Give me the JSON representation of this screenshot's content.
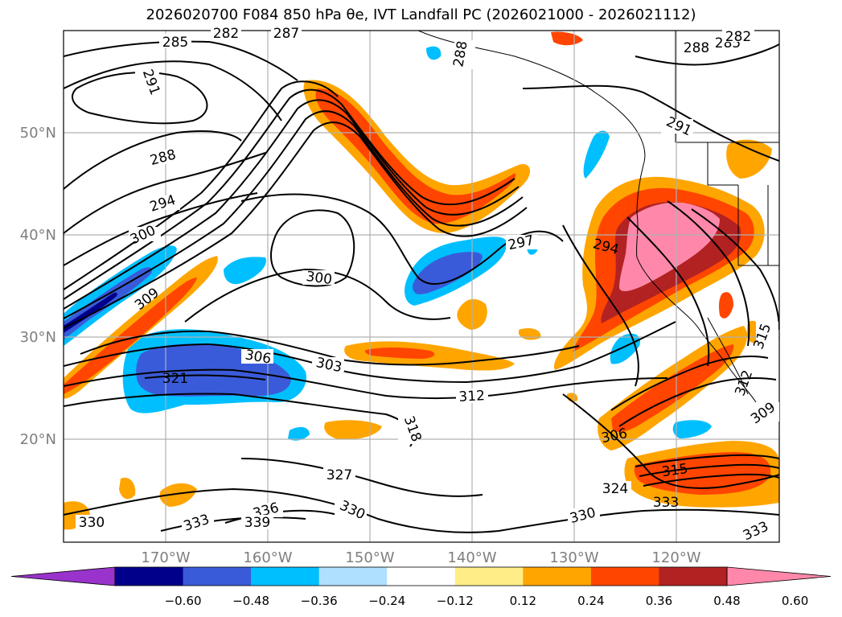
{
  "title": "2026020700 F084 850 hPa θe, IVT Landfall PC (2026021000 - 2026021112)",
  "map": {
    "lat_labels": [
      "50°N",
      "40°N",
      "30°N",
      "20°N"
    ],
    "lon_labels": [
      "170°W",
      "160°W",
      "150°W",
      "140°W",
      "130°W",
      "120°W"
    ],
    "contour_labels": [
      "285",
      "282",
      "287",
      "288",
      "291",
      "288",
      "285",
      "282",
      "291",
      "288",
      "294",
      "300",
      "297",
      "294",
      "300",
      "303",
      "306",
      "312",
      "309",
      "321",
      "318",
      "327",
      "324",
      "330",
      "336",
      "339",
      "333",
      "315",
      "333",
      "330",
      "330",
      "333",
      "306",
      "309",
      "312",
      "315"
    ]
  },
  "colorbar": {
    "tick_labels": [
      "−0.60",
      "−0.48",
      "−0.36",
      "−0.24",
      "−0.12",
      "0.12",
      "0.24",
      "0.36",
      "0.48",
      "0.60"
    ],
    "colors": [
      "#9933cc",
      "#00008b",
      "#3a5bd9",
      "#00bfff",
      "#b0e0ff",
      "#ffffff",
      "#ffee88",
      "#ffa500",
      "#ff4500",
      "#b22222",
      "#ff88aa"
    ]
  }
}
